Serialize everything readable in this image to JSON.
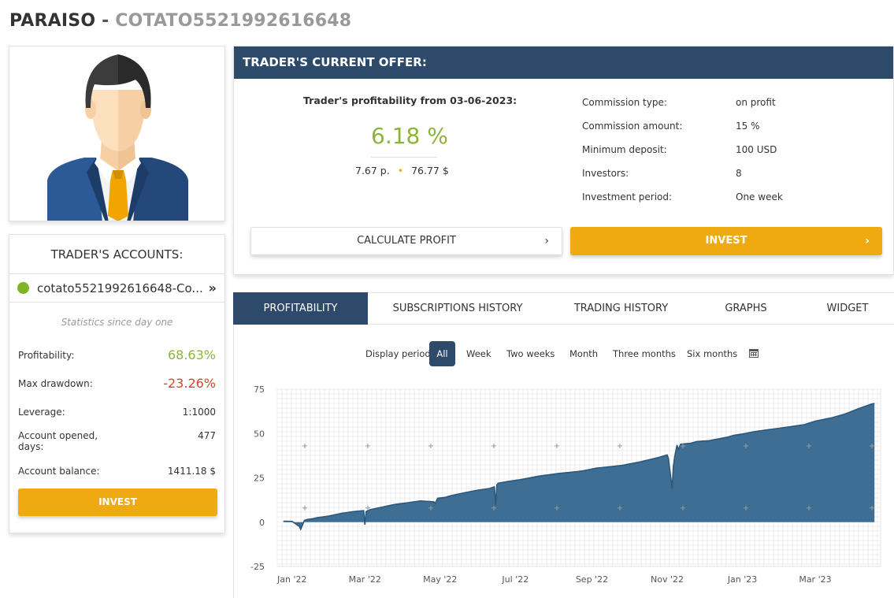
{
  "header": {
    "trader_name": "PARAISO",
    "separator": "-",
    "account_id": "COTATO5521992616648"
  },
  "accounts": {
    "title": "TRADER'S ACCOUNTS:",
    "account_name": "cotato5521992616648-Co...",
    "status_color": "#7fb425",
    "stats_caption": "Statistics since day one",
    "stats": {
      "profitability_label": "Profitability:",
      "profitability_value": "68.63%",
      "max_drawdown_label": "Max drawdown:",
      "max_drawdown_value": "-23.26%",
      "leverage_label": "Leverage:",
      "leverage_value": "1:1000",
      "opened_label_1": "Account opened,",
      "opened_label_2": "days:",
      "opened_value": "477",
      "balance_label": "Account balance:",
      "balance_value": "1411.18 $"
    },
    "invest_label": "INVEST"
  },
  "offer": {
    "title": "TRADER'S CURRENT OFFER:",
    "profitability_label": "Trader's profitability from 03-06-2023:",
    "profitability_value": "6.18 %",
    "points_value": "7.67 p.",
    "dollars_value": "76.77 $",
    "details": [
      {
        "label": "Commission type:",
        "value": "on profit"
      },
      {
        "label": "Commission amount:",
        "value": "15 %"
      },
      {
        "label": "Minimum deposit:",
        "value": "100 USD"
      },
      {
        "label": "Investors:",
        "value": "8"
      },
      {
        "label": "Investment period:",
        "value": "One week"
      }
    ],
    "calculate_label": "CALCULATE PROFIT",
    "invest_label": "INVEST"
  },
  "tabs": [
    {
      "label": "PROFITABILITY",
      "active": true
    },
    {
      "label": "SUBSCRIPTIONS HISTORY",
      "active": false
    },
    {
      "label": "TRADING HISTORY",
      "active": false
    },
    {
      "label": "GRAPHS",
      "active": false
    },
    {
      "label": "WIDGET",
      "active": false
    }
  ],
  "period": {
    "label": "Display period:",
    "options": [
      "All",
      "Week",
      "Two weeks",
      "Month",
      "Three months",
      "Six months"
    ],
    "selected": "All",
    "calendar_icon": "calendar-icon"
  },
  "colors": {
    "accent": "#efaa11",
    "navy": "#2d4a6b",
    "positive": "#8db33a",
    "negative": "#d0482a",
    "chart_fill": "#3f6e94",
    "chart_line": "#2c587c"
  },
  "chart_data": {
    "type": "area",
    "title": "",
    "xlabel": "",
    "ylabel": "",
    "ylim": [
      -25,
      75
    ],
    "yticks": [
      -25,
      0,
      25,
      50,
      75
    ],
    "xlim": [
      "2021-12-20",
      "2023-04-23"
    ],
    "xticks": [
      {
        "date": "2022-01-01",
        "label": "Jan '22"
      },
      {
        "date": "2022-03-01",
        "label": "Mar '22"
      },
      {
        "date": "2022-05-01",
        "label": "May '22"
      },
      {
        "date": "2022-07-01",
        "label": "Jul '22"
      },
      {
        "date": "2022-09-01",
        "label": "Sep '22"
      },
      {
        "date": "2022-11-01",
        "label": "Nov '22"
      },
      {
        "date": "2023-01-01",
        "label": "Jan '23"
      },
      {
        "date": "2023-03-01",
        "label": "Mar '23"
      }
    ],
    "grid": true,
    "series": [
      {
        "x": [
          "2021-12-25",
          "2022-01-01",
          "2022-01-03",
          "2022-01-07",
          "2022-01-08",
          "2022-01-11",
          "2022-01-13",
          "2022-01-18",
          "2022-01-21",
          "2022-01-31",
          "2022-02-10",
          "2022-02-20",
          "2022-02-28",
          "2022-03-01",
          "2022-03-02",
          "2022-03-05",
          "2022-03-15",
          "2022-03-25",
          "2022-04-05",
          "2022-04-15",
          "2022-04-26",
          "2022-04-27",
          "2022-04-29",
          "2022-05-05",
          "2022-05-10",
          "2022-05-20",
          "2022-05-31",
          "2022-06-10",
          "2022-06-14",
          "2022-06-15",
          "2022-06-16",
          "2022-06-17",
          "2022-06-25",
          "2022-07-05",
          "2022-07-20",
          "2022-08-05",
          "2022-08-20",
          "2022-08-25",
          "2022-09-05",
          "2022-09-25",
          "2022-10-10",
          "2022-10-25",
          "2022-11-01",
          "2022-11-02",
          "2022-11-04",
          "2022-11-05",
          "2022-11-06",
          "2022-11-07",
          "2022-11-09",
          "2022-11-10",
          "2022-11-12",
          "2022-11-20",
          "2022-11-25",
          "2022-12-05",
          "2022-12-20",
          "2022-12-25",
          "2023-01-03",
          "2023-01-10",
          "2023-01-20",
          "2023-01-31",
          "2023-02-10",
          "2023-02-20",
          "2023-03-01",
          "2023-03-15",
          "2023-03-25",
          "2023-04-05",
          "2023-04-15",
          "2023-04-18"
        ],
        "y": [
          0.5,
          0.4,
          -0.5,
          -2.5,
          -4,
          1,
          1.5,
          2,
          2.5,
          3.5,
          5,
          6,
          6.5,
          -1.5,
          6,
          7,
          8.5,
          10,
          11,
          12,
          11.5,
          10.5,
          13.5,
          14,
          15,
          16.5,
          18,
          19,
          20,
          9.5,
          21,
          22,
          23,
          24,
          26,
          27.5,
          28.5,
          29,
          30.5,
          32,
          34,
          36.5,
          38,
          36,
          25,
          19,
          31,
          36.5,
          43.5,
          41,
          44,
          44.5,
          45.5,
          46,
          48,
          49,
          50,
          51,
          52,
          53,
          54,
          55,
          57,
          59,
          61,
          64,
          66.5,
          67
        ]
      }
    ]
  }
}
